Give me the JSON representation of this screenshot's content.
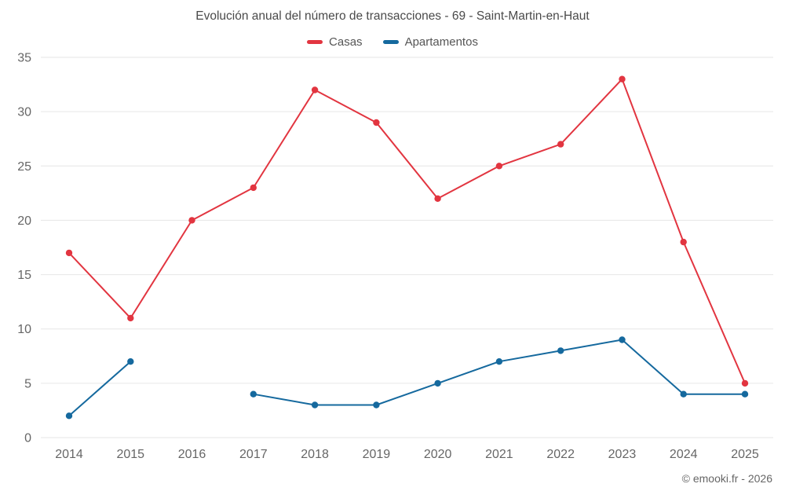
{
  "chart": {
    "title": "Evolución anual del número de transacciones - 69 - Saint-Martin-en-Haut",
    "credit": "© emooki.fr - 2026"
  },
  "chart_data": {
    "type": "line",
    "title": "Evolución anual del número de transacciones - 69 - Saint-Martin-en-Haut",
    "categories": [
      "2014",
      "2015",
      "2016",
      "2017",
      "2018",
      "2019",
      "2020",
      "2021",
      "2022",
      "2023",
      "2024",
      "2025"
    ],
    "series": [
      {
        "name": "Casas",
        "color": "#e23540",
        "values": [
          17,
          11,
          20,
          23,
          32,
          29,
          22,
          25,
          27,
          33,
          18,
          5
        ]
      },
      {
        "name": "Apartamentos",
        "color": "#15699e",
        "values": [
          2,
          7,
          null,
          4,
          3,
          3,
          5,
          7,
          8,
          9,
          4,
          4
        ]
      }
    ],
    "xlabel": "",
    "ylabel": "",
    "ylim": [
      0,
      35
    ],
    "yticks": [
      0,
      5,
      10,
      15,
      20,
      25,
      30,
      35
    ],
    "grid": true,
    "legend_position": "top",
    "grid_color": "#e6e6e6",
    "tick_label_color": "#666666"
  }
}
